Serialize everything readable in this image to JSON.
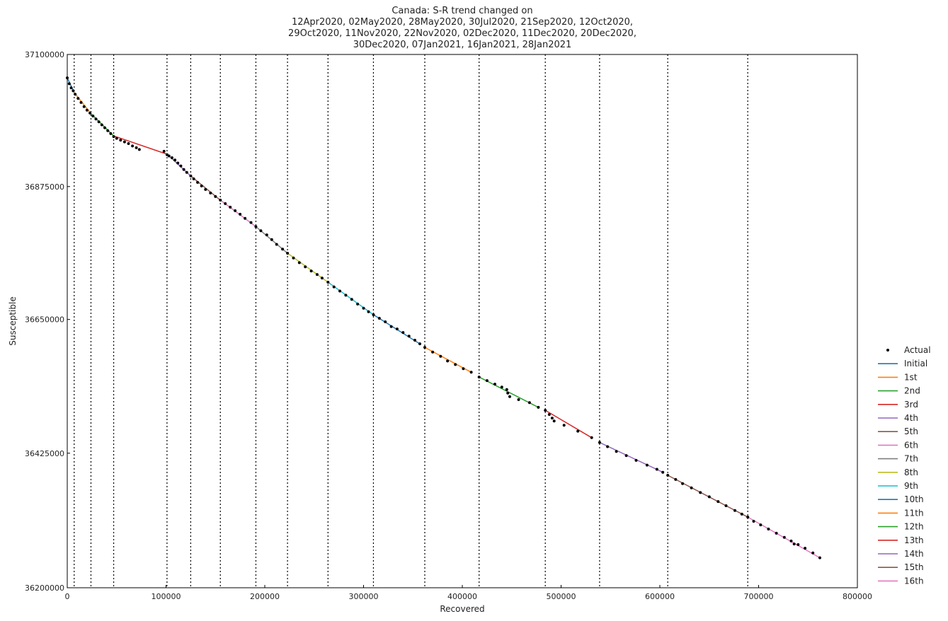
{
  "chart_data": {
    "type": "line",
    "title_lines": [
      "Canada: S-R trend changed on",
      "12Apr2020, 02May2020, 28May2020, 30Jul2020, 21Sep2020, 12Oct2020,",
      "29Oct2020, 11Nov2020, 22Nov2020, 02Dec2020, 11Dec2020, 20Dec2020,",
      "30Dec2020, 07Jan2021, 16Jan2021, 28Jan2021"
    ],
    "xlabel": "Recovered",
    "ylabel": "Susceptible",
    "xlim": [
      0,
      800000
    ],
    "ylim": [
      36200000,
      37100000
    ],
    "y_log_scale": true,
    "xticks": [
      0,
      100000,
      200000,
      300000,
      400000,
      500000,
      600000,
      700000,
      800000
    ],
    "xtick_labels": [
      "0",
      "100000",
      "200000",
      "300000",
      "400000",
      "500000",
      "600000",
      "700000",
      "800000"
    ],
    "yticks": [
      36200000,
      36425000,
      36650000,
      36875000,
      37100000
    ],
    "ytick_labels": [
      "36200000",
      "36425000",
      "36650000",
      "36875000",
      "37100000"
    ],
    "grid": false,
    "legend_position": "right",
    "change_points_x": [
      7000,
      24000,
      47000,
      101000,
      125000,
      155000,
      191000,
      223000,
      264000,
      310000,
      362000,
      417000,
      484000,
      539000,
      608000,
      689000
    ],
    "actual": {
      "name": "Actual",
      "color": "#000000",
      "x": [
        0,
        2000,
        4000,
        6000,
        8000,
        11000,
        14000,
        17000,
        20000,
        23000,
        26000,
        29000,
        32000,
        35000,
        38000,
        41000,
        44000,
        47000,
        50000,
        54000,
        58000,
        62000,
        66000,
        70000,
        73000,
        98000,
        101000,
        103000,
        106000,
        109000,
        112000,
        115000,
        118000,
        121000,
        125000,
        128000,
        132000,
        136000,
        140000,
        145000,
        150000,
        155000,
        160000,
        165000,
        170000,
        175000,
        180000,
        186000,
        191000,
        196000,
        202000,
        207000,
        212000,
        218000,
        223000,
        229000,
        235000,
        241000,
        247000,
        253000,
        258000,
        264000,
        270000,
        276000,
        282000,
        288000,
        294000,
        300000,
        305000,
        310000,
        316000,
        322000,
        328000,
        334000,
        340000,
        346000,
        352000,
        357000,
        362000,
        370000,
        378000,
        385000,
        393000,
        401000,
        409000,
        417000,
        425000,
        433000,
        440000,
        445000,
        446000,
        448000,
        457000,
        468000,
        477000,
        484000,
        488000,
        491000,
        493000,
        503000,
        517000,
        531000,
        539000,
        547000,
        556000,
        566000,
        576000,
        587000,
        597000,
        603000,
        608000,
        616000,
        623000,
        632000,
        641000,
        650000,
        659000,
        667000,
        676000,
        683000,
        689000,
        695000,
        702000,
        710000,
        718000,
        726000,
        733000,
        736000,
        740000,
        747000,
        755000,
        762000
      ],
      "y": [
        37060000,
        37050000,
        37043000,
        37038000,
        37032000,
        37025000,
        37018000,
        37011000,
        37005000,
        37000000,
        36995000,
        36990000,
        36985000,
        36980000,
        36975000,
        36970000,
        36965000,
        36960000,
        36957000,
        36954000,
        36951000,
        36948000,
        36944000,
        36941000,
        36938000,
        36935000,
        36929000,
        36927000,
        36924000,
        36920000,
        36915000,
        36910000,
        36904000,
        36899000,
        36893000,
        36888000,
        36882000,
        36876000,
        36870000,
        36864000,
        36858000,
        36852000,
        36846000,
        36840000,
        36834000,
        36828000,
        36821000,
        36814000,
        36807000,
        36800000,
        36793000,
        36785000,
        36777000,
        36769000,
        36762000,
        36754000,
        36746000,
        36739000,
        36732000,
        36726000,
        36720000,
        36713000,
        36705000,
        36698000,
        36691000,
        36684000,
        36676000,
        36669000,
        36663000,
        36658000,
        36652000,
        36646000,
        36638000,
        36634000,
        36628000,
        36622000,
        36615000,
        36609000,
        36603000,
        36595000,
        36588000,
        36580000,
        36574000,
        36567000,
        36561000,
        36553000,
        36547000,
        36541000,
        36536000,
        36532000,
        36526000,
        36520000,
        36515000,
        36510000,
        36502000,
        36497000,
        36490000,
        36484000,
        36479000,
        36472000,
        36462000,
        36451000,
        36443000,
        36436000,
        36428000,
        36421000,
        36413000,
        36405000,
        36398000,
        36393000,
        36388000,
        36381000,
        36374000,
        36367000,
        36359000,
        36352000,
        36344000,
        36337000,
        36329000,
        36323000,
        36318000,
        36311000,
        36305000,
        36298000,
        36291000,
        36284000,
        36278000,
        36273000,
        36272000,
        36266000,
        36258000,
        36250000
      ]
    },
    "series": [
      {
        "name": "Initial",
        "color": "#1f77b4",
        "x": [
          0,
          7000
        ],
        "y": [
          37060000,
          37035000
        ]
      },
      {
        "name": "1st",
        "color": "#ff7f0e",
        "x": [
          7000,
          24000
        ],
        "y": [
          37035000,
          36999000
        ]
      },
      {
        "name": "2nd",
        "color": "#2ca02c",
        "x": [
          24000,
          47000
        ],
        "y": [
          36999000,
          36961000
        ]
      },
      {
        "name": "3rd",
        "color": "#d62728",
        "x": [
          47000,
          101000
        ],
        "y": [
          36961000,
          36930000
        ]
      },
      {
        "name": "4th",
        "color": "#9467bd",
        "x": [
          101000,
          125000
        ],
        "y": [
          36930000,
          36893000
        ]
      },
      {
        "name": "5th",
        "color": "#8c564b",
        "x": [
          125000,
          155000
        ],
        "y": [
          36893000,
          36852000
        ]
      },
      {
        "name": "6th",
        "color": "#e377c2",
        "x": [
          155000,
          191000
        ],
        "y": [
          36852000,
          36807000
        ]
      },
      {
        "name": "7th",
        "color": "#7f7f7f",
        "x": [
          191000,
          223000
        ],
        "y": [
          36807000,
          36762000
        ]
      },
      {
        "name": "8th",
        "color": "#bcbd22",
        "x": [
          223000,
          264000
        ],
        "y": [
          36762000,
          36713000
        ]
      },
      {
        "name": "9th",
        "color": "#17becf",
        "x": [
          264000,
          310000
        ],
        "y": [
          36713000,
          36658000
        ]
      },
      {
        "name": "10th",
        "color": "#1f77b4",
        "x": [
          310000,
          357000
        ],
        "y": [
          36658000,
          36609000
        ]
      },
      {
        "name": "11th",
        "color": "#ff7f0e",
        "x": [
          362000,
          409000
        ],
        "y": [
          36603000,
          36561000
        ]
      },
      {
        "name": "12th",
        "color": "#2ca02c",
        "x": [
          417000,
          477000
        ],
        "y": [
          36553000,
          36502000
        ]
      },
      {
        "name": "13th",
        "color": "#d62728",
        "x": [
          484000,
          531000
        ],
        "y": [
          36497000,
          36451000
        ]
      },
      {
        "name": "14th",
        "color": "#9467bd",
        "x": [
          539000,
          603000
        ],
        "y": [
          36443000,
          36393000
        ]
      },
      {
        "name": "15th",
        "color": "#8c564b",
        "x": [
          608000,
          689000
        ],
        "y": [
          36388000,
          36318000
        ]
      },
      {
        "name": "16th",
        "color": "#e377c2",
        "x": [
          689000,
          762000
        ],
        "y": [
          36318000,
          36250000
        ]
      }
    ]
  }
}
